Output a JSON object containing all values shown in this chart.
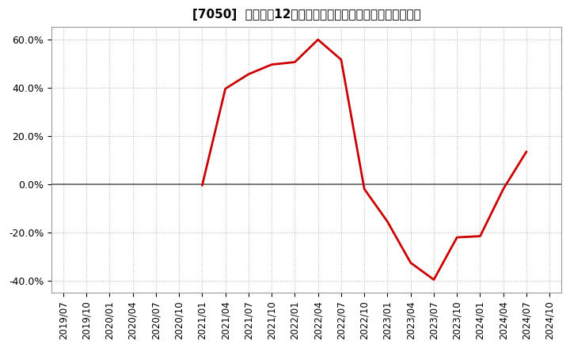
{
  "title": "[7050]  売上高の12か月移動合計の対前年同期増減率の推移",
  "line_color": "#cc0000",
  "line_width": 2.0,
  "background_color": "#ffffff",
  "plot_bg_color": "#ffffff",
  "grid_color": "#bbbbbb",
  "zero_line_color": "#666666",
  "ylim": [
    -0.45,
    0.65
  ],
  "yticks": [
    -0.4,
    -0.2,
    0.0,
    0.2,
    0.4,
    0.6
  ],
  "ytick_labels": [
    "-40.0%",
    "-20.0%",
    "0.0%",
    "20.0%",
    "40.0%",
    "60.0%"
  ],
  "x_labels": [
    "2019/07",
    "2019/10",
    "2020/01",
    "2020/04",
    "2020/07",
    "2020/10",
    "2021/01",
    "2021/04",
    "2021/07",
    "2021/10",
    "2022/01",
    "2022/04",
    "2022/07",
    "2022/10",
    "2023/01",
    "2023/04",
    "2023/07",
    "2023/10",
    "2024/01",
    "2024/04",
    "2024/07",
    "2024/10"
  ],
  "data": [
    [
      "2019/07",
      null
    ],
    [
      "2019/10",
      null
    ],
    [
      "2020/01",
      null
    ],
    [
      "2020/04",
      null
    ],
    [
      "2020/07",
      null
    ],
    [
      "2020/10",
      null
    ],
    [
      "2021/01",
      -0.005
    ],
    [
      "2021/04",
      0.395
    ],
    [
      "2021/07",
      0.455
    ],
    [
      "2021/10",
      0.495
    ],
    [
      "2022/01",
      0.505
    ],
    [
      "2022/04",
      0.598
    ],
    [
      "2022/07",
      0.515
    ],
    [
      "2022/10",
      -0.02
    ],
    [
      "2023/01",
      -0.155
    ],
    [
      "2023/04",
      -0.325
    ],
    [
      "2023/07",
      -0.395
    ],
    [
      "2023/10",
      -0.22
    ],
    [
      "2024/01",
      -0.215
    ],
    [
      "2024/04",
      -0.02
    ],
    [
      "2024/07",
      0.135
    ],
    [
      "2024/10",
      null
    ]
  ],
  "title_fontsize": 11,
  "tick_fontsize": 8.5,
  "ytick_fontsize": 9
}
